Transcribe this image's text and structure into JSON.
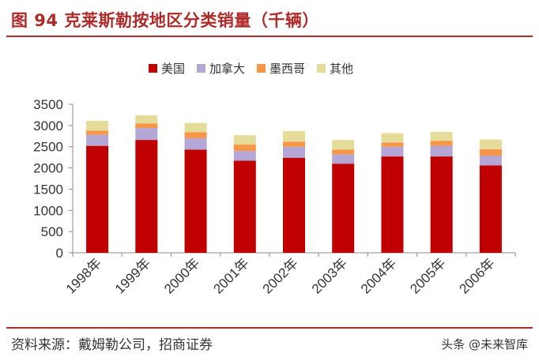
{
  "header": {
    "title": "图 94 克莱斯勒按地区分类销量（千辆）"
  },
  "footer": {
    "source": "资料来源：戴姆勒公司，招商证券",
    "watermark": "头条 @未来智库"
  },
  "chart_data": {
    "type": "bar",
    "stacked": true,
    "categories": [
      "1998年",
      "1999年",
      "2000年",
      "2001年",
      "2002年",
      "2003年",
      "2004年",
      "2005年",
      "2006年"
    ],
    "series": [
      {
        "name": "美国",
        "color": "#c00000",
        "values": [
          2520,
          2660,
          2430,
          2170,
          2240,
          2100,
          2270,
          2270,
          2060
        ]
      },
      {
        "name": "加拿大",
        "color": "#b4a7d6",
        "values": [
          260,
          280,
          270,
          230,
          260,
          220,
          230,
          250,
          230
        ]
      },
      {
        "name": "墨西哥",
        "color": "#f79646",
        "values": [
          100,
          110,
          140,
          150,
          120,
          110,
          100,
          120,
          150
        ]
      },
      {
        "name": "其他",
        "color": "#e6dc9a",
        "values": [
          230,
          190,
          220,
          220,
          250,
          230,
          220,
          210,
          230
        ]
      }
    ],
    "yticks": [
      0,
      500,
      1000,
      1500,
      2000,
      2500,
      3000,
      3500
    ],
    "ylim": [
      0,
      3500
    ],
    "legend": "top",
    "grid": false
  }
}
